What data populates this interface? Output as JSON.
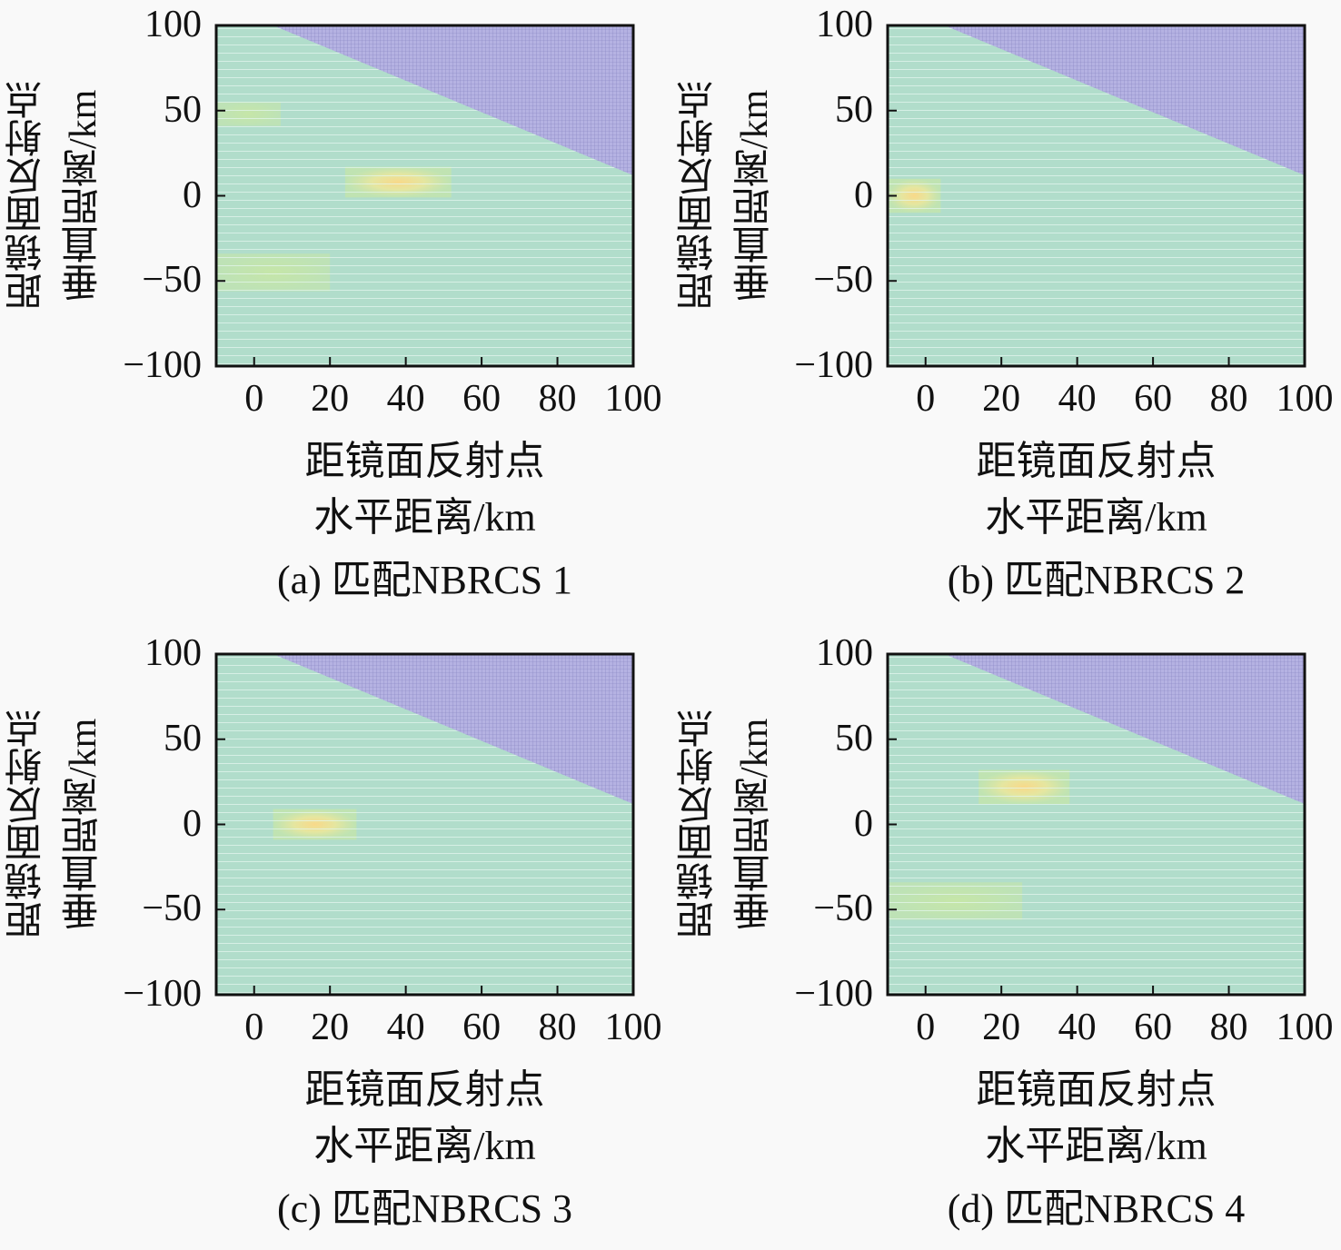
{
  "chart_data": [
    {
      "type": "heatmap",
      "title": "(a) 匹配NBRCS 1",
      "xlabel": [
        "距镜面反射点",
        "水平距离/km"
      ],
      "ylabel": [
        "距镜面反射点",
        "垂直距离/km"
      ],
      "xlim": [
        -10,
        100
      ],
      "ylim": [
        -100,
        100
      ],
      "xticks": [
        "0",
        "20",
        "40",
        "60",
        "80",
        "100"
      ],
      "yticks": [
        "100",
        "50",
        "0",
        "−50",
        "−100"
      ],
      "boundary": [
        [
          5,
          100
        ],
        [
          100,
          12
        ]
      ],
      "hotspots": [
        {
          "x": 38,
          "y": 8,
          "w": 28,
          "h": 18,
          "level": "high"
        },
        {
          "x": -2,
          "y": 48,
          "w": 18,
          "h": 14,
          "level": "low"
        },
        {
          "x": 5,
          "y": -45,
          "w": 30,
          "h": 22,
          "level": "low"
        }
      ]
    },
    {
      "type": "heatmap",
      "title": "(b) 匹配NBRCS 2",
      "xlabel": [
        "距镜面反射点",
        "水平距离/km"
      ],
      "ylabel": [
        "距镜面反射点",
        "垂直距离/km"
      ],
      "xlim": [
        -10,
        100
      ],
      "ylim": [
        -100,
        100
      ],
      "xticks": [
        "0",
        "20",
        "40",
        "60",
        "80",
        "100"
      ],
      "yticks": [
        "100",
        "50",
        "0",
        "−50",
        "−100"
      ],
      "boundary": [
        [
          5,
          100
        ],
        [
          100,
          12
        ]
      ],
      "hotspots": [
        {
          "x": -3,
          "y": 0,
          "w": 14,
          "h": 20,
          "level": "high"
        }
      ]
    },
    {
      "type": "heatmap",
      "title": "(c) 匹配NBRCS 3",
      "xlabel": [
        "距镜面反射点",
        "水平距离/km"
      ],
      "ylabel": [
        "距镜面反射点",
        "垂直距离/km"
      ],
      "xlim": [
        -10,
        100
      ],
      "ylim": [
        -100,
        100
      ],
      "xticks": [
        "0",
        "20",
        "40",
        "60",
        "80",
        "100"
      ],
      "yticks": [
        "100",
        "50",
        "0",
        "−50",
        "−100"
      ],
      "boundary": [
        [
          5,
          100
        ],
        [
          100,
          12
        ]
      ],
      "hotspots": [
        {
          "x": 16,
          "y": 0,
          "w": 22,
          "h": 18,
          "level": "high"
        }
      ]
    },
    {
      "type": "heatmap",
      "title": "(d) 匹配NBRCS 4",
      "xlabel": [
        "距镜面反射点",
        "水平距离/km"
      ],
      "ylabel": [
        "距镜面反射点",
        "垂直距离/km"
      ],
      "xlim": [
        -10,
        100
      ],
      "ylim": [
        -100,
        100
      ],
      "xticks": [
        "0",
        "20",
        "40",
        "60",
        "80",
        "100"
      ],
      "yticks": [
        "100",
        "50",
        "0",
        "−50",
        "−100"
      ],
      "boundary": [
        [
          5,
          100
        ],
        [
          100,
          12
        ]
      ],
      "hotspots": [
        {
          "x": 26,
          "y": 22,
          "w": 24,
          "h": 20,
          "level": "high"
        },
        {
          "x": 8,
          "y": -45,
          "w": 35,
          "h": 22,
          "level": "low"
        }
      ]
    }
  ],
  "colors": {
    "base": "#b1ddcb",
    "region": "#b5b2e2",
    "region_grid": "#5a56a0",
    "grid": "#e6f7f0",
    "hot_high": "#f8d98a",
    "hot_mid": "#e5e6a0",
    "hot_low": "#c6e6a8"
  }
}
